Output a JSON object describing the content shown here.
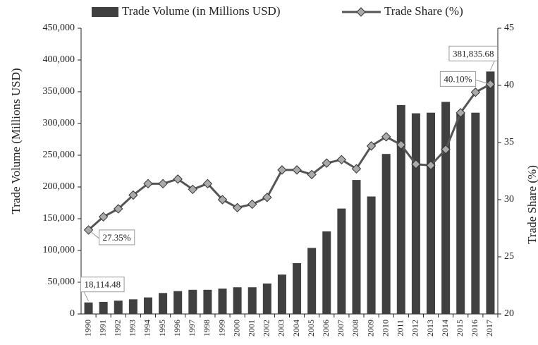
{
  "chart_data": {
    "type": "bar-line",
    "categories": [
      "1990",
      "1991",
      "1992",
      "1993",
      "1994",
      "1995",
      "1996",
      "1997",
      "1998",
      "1999",
      "2000",
      "2001",
      "2002",
      "2003",
      "2004",
      "2005",
      "2006",
      "2007",
      "2008",
      "2009",
      "2010",
      "2011",
      "2012",
      "2013",
      "2014",
      "2015",
      "2016",
      "2017"
    ],
    "series": [
      {
        "name": "Trade Volume (in Millions USD)",
        "type": "bar",
        "color": "#404040",
        "values": [
          18114.48,
          19000,
          21000,
          23000,
          26000,
          33000,
          36000,
          38000,
          38000,
          40000,
          42000,
          42000,
          48000,
          62000,
          80000,
          104000,
          130000,
          166000,
          211000,
          185000,
          252000,
          329000,
          316000,
          317000,
          334000,
          316000,
          317000,
          381835.68
        ],
        "value_labels": [
          "18,114.48",
          null,
          null,
          null,
          null,
          null,
          null,
          null,
          null,
          null,
          null,
          null,
          null,
          null,
          null,
          null,
          null,
          null,
          null,
          null,
          null,
          null,
          null,
          null,
          null,
          null,
          null,
          "381,835.68"
        ]
      },
      {
        "name": "Trade Share (%)",
        "type": "line",
        "axis": "y2",
        "color": "#555555",
        "marker_color": "#aaaaaa",
        "values": [
          27.35,
          28.5,
          29.2,
          30.4,
          31.4,
          31.4,
          31.8,
          30.9,
          31.4,
          30.0,
          29.3,
          29.6,
          30.2,
          32.6,
          32.6,
          32.2,
          33.2,
          33.5,
          32.7,
          34.7,
          35.5,
          34.8,
          33.1,
          33.0,
          34.4,
          37.6,
          39.4,
          40.1
        ],
        "value_labels": [
          "27.35%",
          null,
          null,
          null,
          null,
          null,
          null,
          null,
          null,
          null,
          null,
          null,
          null,
          null,
          null,
          null,
          null,
          null,
          null,
          null,
          null,
          null,
          null,
          null,
          null,
          null,
          null,
          "40.10%"
        ]
      }
    ],
    "y_label": "Trade Volume (Millions USD)",
    "y2_label": "Trade Share (%)",
    "ylim": [
      0,
      450000
    ],
    "yticks": [
      0,
      {
        "value": 50000,
        "label": "50,000"
      },
      {
        "value": 100000,
        "label": "100,000"
      },
      {
        "value": 150000,
        "label": "150,000"
      },
      {
        "value": 200000,
        "label": "200,000"
      },
      {
        "value": 250000,
        "label": "250,000"
      },
      {
        "value": 300000,
        "label": "300,000"
      },
      {
        "value": 350000,
        "label": "350,000"
      },
      {
        "value": 400000,
        "label": "400,000"
      },
      {
        "value": 450000,
        "label": "450,000"
      }
    ],
    "y2lim": [
      20,
      45
    ],
    "y2ticks": [
      20,
      25,
      30,
      35,
      40,
      45
    ],
    "grid": false,
    "legend": "top"
  }
}
